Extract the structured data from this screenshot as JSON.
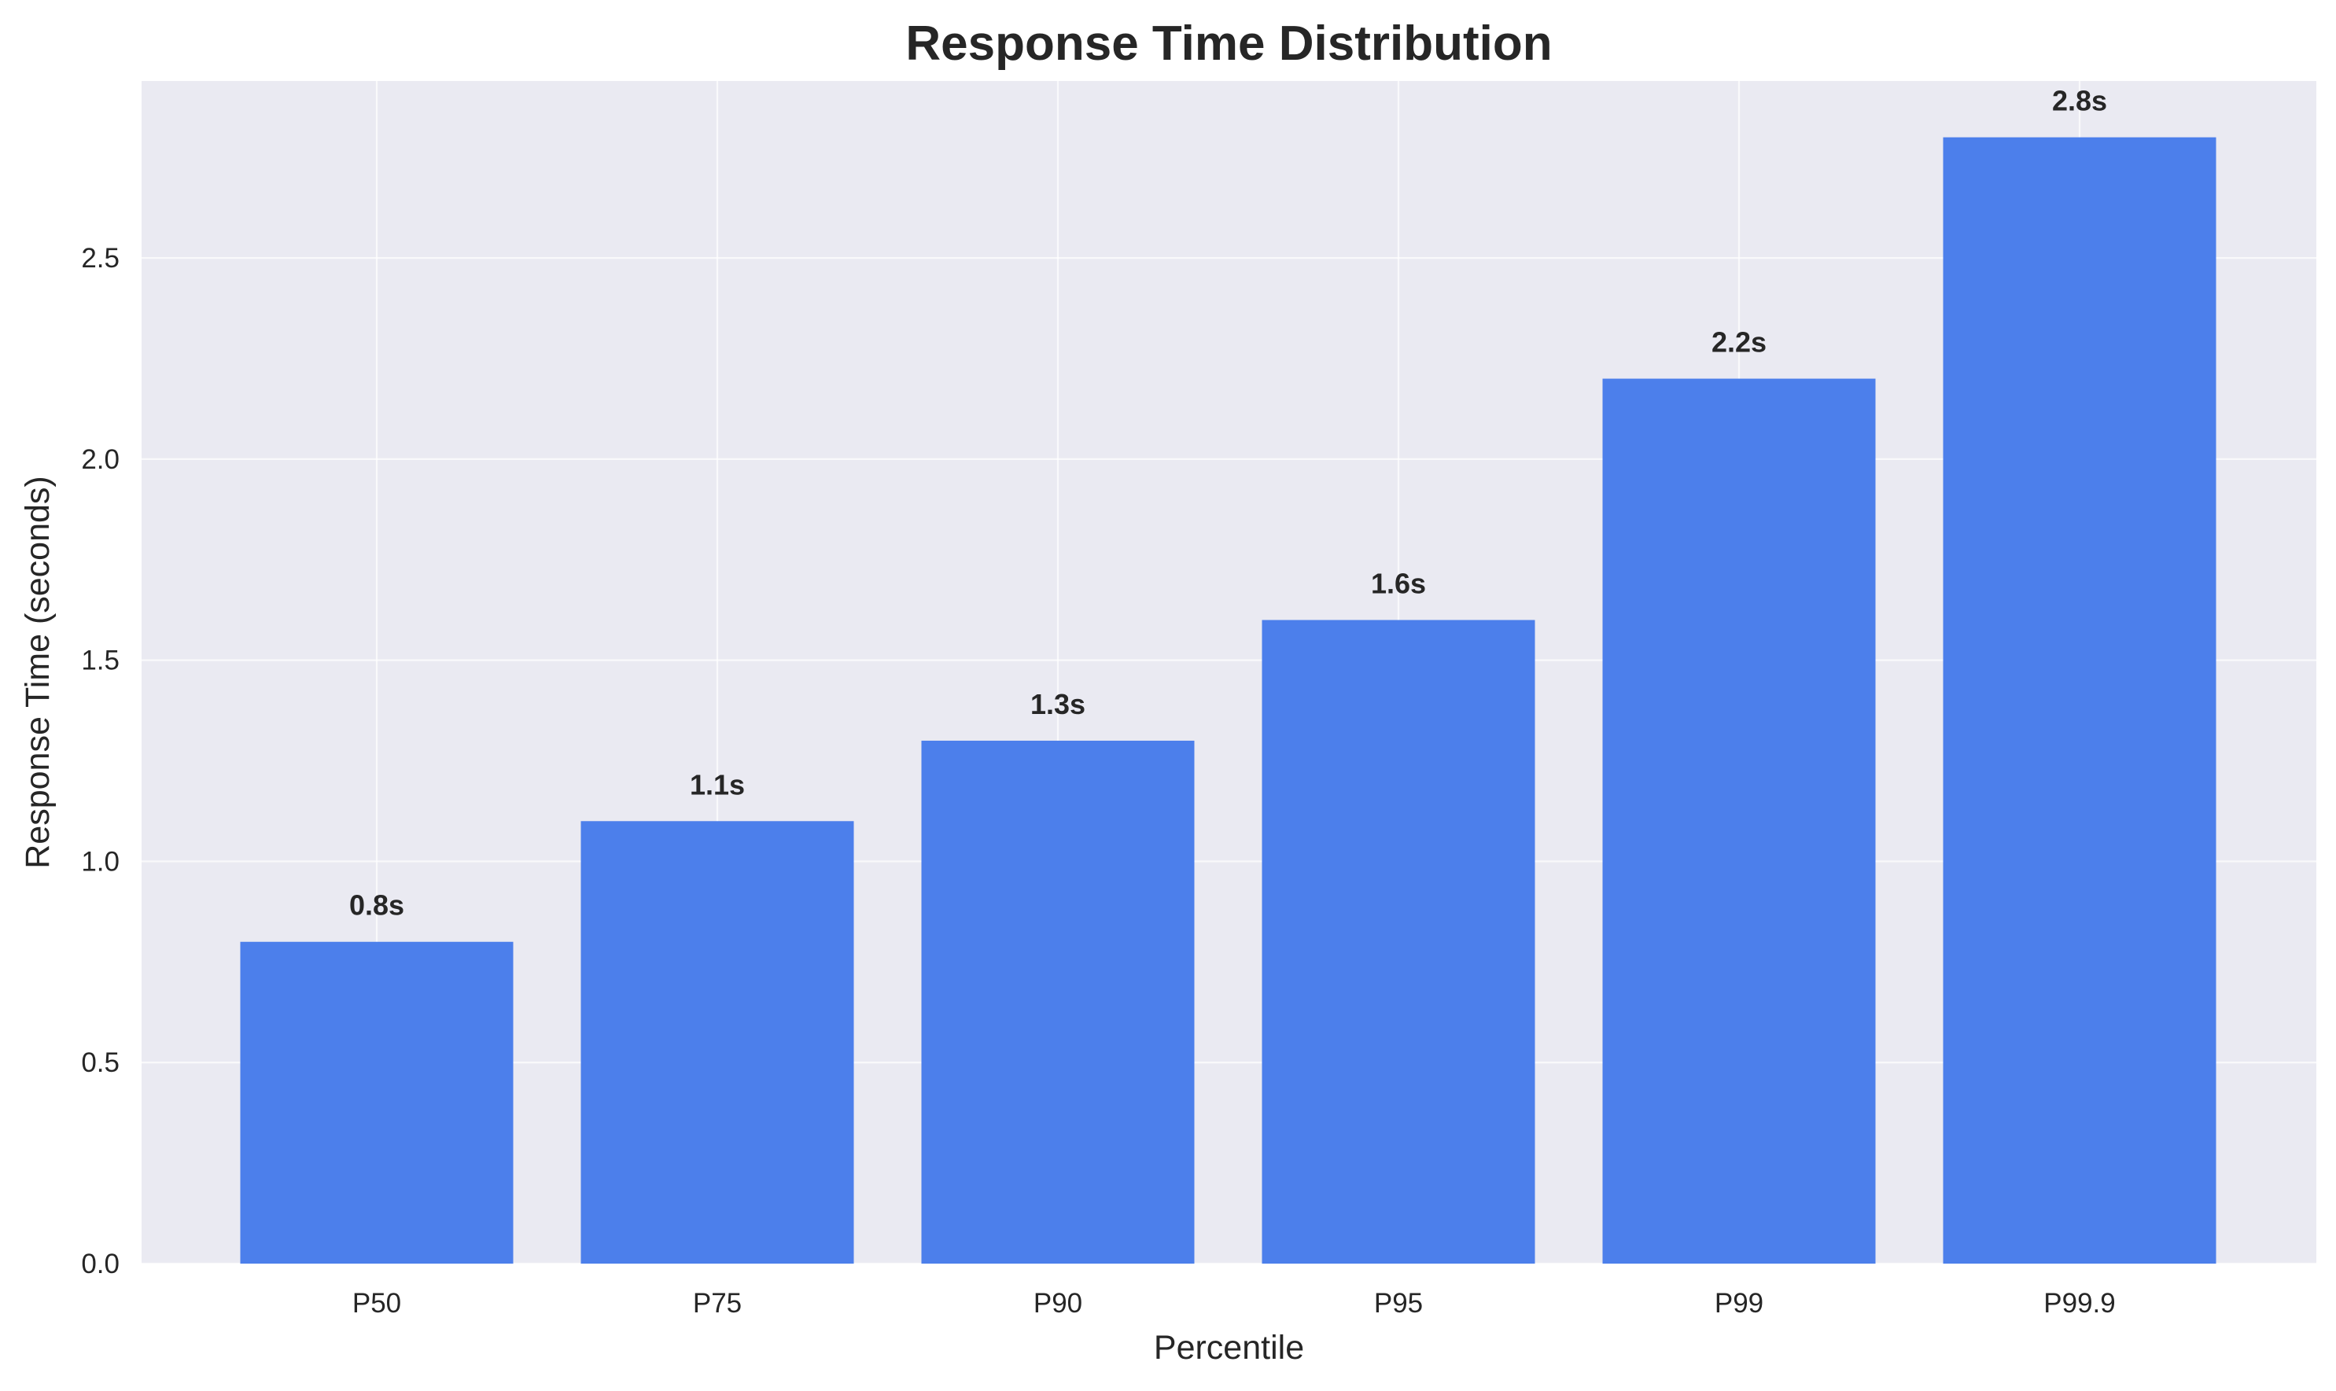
{
  "chart_data": {
    "type": "bar",
    "title": "Response Time Distribution",
    "xlabel": "Percentile",
    "ylabel": "Response Time (seconds)",
    "categories": [
      "P50",
      "P75",
      "P90",
      "P95",
      "P99",
      "P99.9"
    ],
    "values": [
      0.8,
      1.1,
      1.3,
      1.6,
      2.2,
      2.8
    ],
    "data_labels": [
      "0.8s",
      "1.1s",
      "1.3s",
      "1.6s",
      "2.2s",
      "2.8s"
    ],
    "ylim": [
      0,
      2.94
    ],
    "yticks": [
      0.0,
      0.5,
      1.0,
      1.5,
      2.0,
      2.5
    ],
    "ytick_labels": [
      "0.0",
      "0.5",
      "1.0",
      "1.5",
      "2.0",
      "2.5"
    ],
    "grid": true,
    "colors": {
      "bar": "#4c7feb",
      "plot_background": "#eaeaf2",
      "grid": "#ffffff",
      "text": "#262626"
    }
  }
}
